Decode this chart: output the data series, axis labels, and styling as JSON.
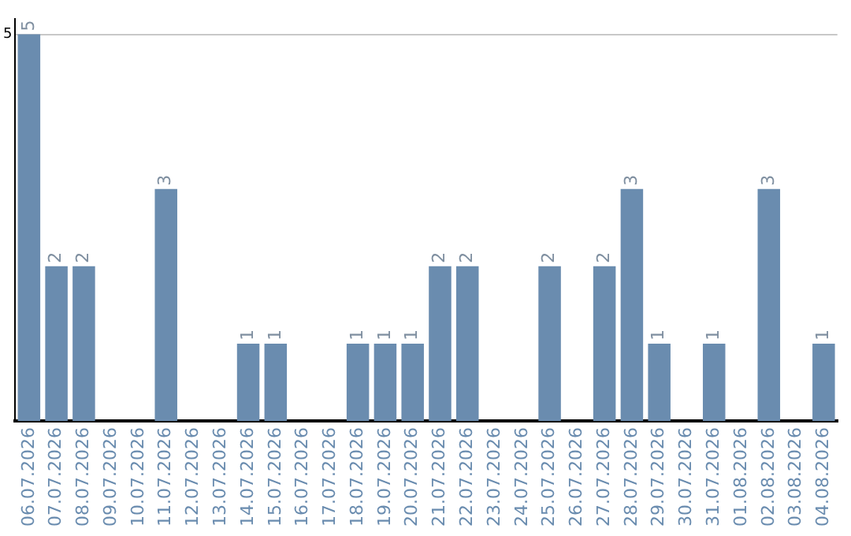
{
  "chart_data": {
    "type": "bar",
    "categories": [
      "06.07.2026",
      "07.07.2026",
      "08.07.2026",
      "09.07.2026",
      "10.07.2026",
      "11.07.2026",
      "12.07.2026",
      "13.07.2026",
      "14.07.2026",
      "15.07.2026",
      "16.07.2026",
      "17.07.2026",
      "18.07.2026",
      "19.07.2026",
      "20.07.2026",
      "21.07.2026",
      "22.07.2026",
      "23.07.2026",
      "24.07.2026",
      "25.07.2026",
      "26.07.2026",
      "27.07.2026",
      "28.07.2026",
      "29.07.2026",
      "30.07.2026",
      "31.07.2026",
      "01.08.2026",
      "02.08.2026",
      "03.08.2026",
      "04.08.2026"
    ],
    "values": [
      5,
      2,
      2,
      0,
      0,
      3,
      0,
      0,
      1,
      1,
      0,
      0,
      1,
      1,
      1,
      2,
      2,
      0,
      0,
      2,
      0,
      2,
      3,
      1,
      0,
      1,
      0,
      3,
      0,
      1
    ],
    "value_labels": [
      "5",
      "2",
      "2",
      null,
      null,
      "3",
      null,
      null,
      "1",
      "1",
      null,
      null,
      "1",
      "1",
      "1",
      "2",
      "2",
      null,
      null,
      "2",
      null,
      "2",
      "3",
      "1",
      null,
      "1",
      null,
      "3",
      null,
      "1"
    ],
    "color": "#6a8caf",
    "ylim": [
      0,
      5.2
    ],
    "yticks": [
      5
    ],
    "grid": "y",
    "legend": false
  }
}
